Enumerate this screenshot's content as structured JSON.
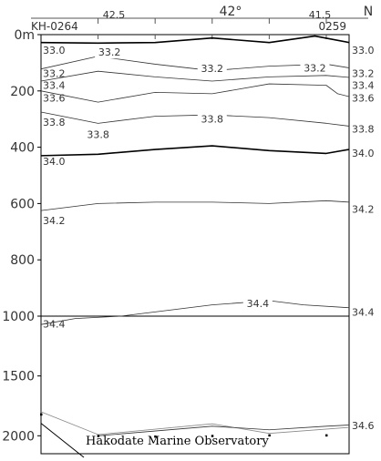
{
  "chart_data": {
    "type": "contour",
    "title": "",
    "top_labels": [
      "42.5",
      "42°",
      "41.5",
      "N"
    ],
    "stations": {
      "left": "KH-0264",
      "right": "0259"
    },
    "x_ticks": [
      42.5,
      42.25,
      42.0,
      41.75,
      41.5
    ],
    "xlim": [
      42.75,
      41.4
    ],
    "yaxis": {
      "upper": {
        "range": [
          0,
          1000
        ],
        "ticks": [
          0,
          200,
          400,
          600,
          800,
          1000
        ],
        "tick_labels": [
          "0m",
          "200",
          "400",
          "600",
          "800",
          "1000"
        ]
      },
      "lower": {
        "range": [
          1000,
          2150
        ],
        "ticks": [
          1500,
          2000
        ],
        "tick_labels": [
          "1500",
          "2000"
        ]
      }
    },
    "sample_marks": [
      [
        42.75,
        1820
      ],
      [
        42.5,
        2000
      ],
      [
        42.25,
        2005
      ],
      [
        42.0,
        2000
      ],
      [
        41.75,
        1995
      ],
      [
        41.5,
        1995
      ]
    ],
    "bottom_depth": [
      [
        42.75,
        1800
      ],
      [
        42.5,
        1990
      ],
      [
        42.0,
        1900
      ],
      [
        41.75,
        1980
      ],
      [
        41.4,
        1930
      ]
    ],
    "isolines": [
      {
        "value": "33.0",
        "bold": true,
        "points": [
          [
            42.75,
            28
          ],
          [
            42.5,
            30
          ],
          [
            42.25,
            28
          ],
          [
            42.0,
            12
          ],
          [
            41.75,
            28
          ],
          [
            41.55,
            5
          ],
          [
            41.4,
            28
          ]
        ],
        "labels": [
          [
            42.85,
            55,
            "left"
          ],
          [
            41.3,
            55,
            "right"
          ]
        ]
      },
      {
        "value": "33.2",
        "bold": false,
        "points": [
          [
            42.75,
            122
          ],
          [
            42.5,
            77
          ],
          [
            42.25,
            105
          ],
          [
            42.0,
            128
          ],
          [
            41.75,
            112
          ],
          [
            41.5,
            105
          ],
          [
            41.4,
            118
          ]
        ],
        "labels": [
          [
            42.85,
            138,
            "left"
          ],
          [
            42.45,
            62,
            "mid"
          ],
          [
            42.0,
            120,
            "mid"
          ],
          [
            41.55,
            118,
            "mid"
          ],
          [
            41.3,
            138,
            "right"
          ]
        ]
      },
      {
        "value": "33.4",
        "bold": false,
        "points": [
          [
            42.75,
            165
          ],
          [
            42.5,
            130
          ],
          [
            42.25,
            150
          ],
          [
            42.0,
            165
          ],
          [
            41.75,
            150
          ],
          [
            41.5,
            145
          ],
          [
            41.4,
            152
          ]
        ],
        "labels": [
          [
            42.85,
            180,
            "left"
          ],
          [
            41.3,
            180,
            "right"
          ]
        ]
      },
      {
        "value": "33.6",
        "bold": false,
        "points": [
          [
            42.75,
            200
          ],
          [
            42.5,
            240
          ],
          [
            42.25,
            205
          ],
          [
            42.0,
            210
          ],
          [
            41.75,
            175
          ],
          [
            41.5,
            180
          ],
          [
            41.45,
            210
          ],
          [
            41.4,
            220
          ]
        ],
        "labels": [
          [
            42.85,
            225,
            "left"
          ],
          [
            41.3,
            225,
            "right"
          ]
        ]
      },
      {
        "value": "33.8",
        "bold": false,
        "points": [
          [
            42.75,
            275
          ],
          [
            42.5,
            315
          ],
          [
            42.25,
            290
          ],
          [
            42.0,
            285
          ],
          [
            41.75,
            295
          ],
          [
            41.5,
            315
          ],
          [
            41.4,
            325
          ]
        ],
        "labels": [
          [
            42.85,
            310,
            "left"
          ],
          [
            42.5,
            355,
            "mid"
          ],
          [
            42.0,
            300,
            "mid"
          ],
          [
            41.3,
            335,
            "right"
          ]
        ]
      },
      {
        "value": "34.0",
        "bold": true,
        "points": [
          [
            42.75,
            430
          ],
          [
            42.5,
            425
          ],
          [
            42.25,
            408
          ],
          [
            42.0,
            395
          ],
          [
            41.75,
            412
          ],
          [
            41.5,
            422
          ],
          [
            41.4,
            408
          ]
        ],
        "labels": [
          [
            42.85,
            450,
            "left"
          ],
          [
            41.3,
            420,
            "right"
          ]
        ]
      },
      {
        "value": "34.2",
        "bold": false,
        "points": [
          [
            42.75,
            625
          ],
          [
            42.5,
            600
          ],
          [
            42.25,
            595
          ],
          [
            42.0,
            595
          ],
          [
            41.75,
            600
          ],
          [
            41.5,
            590
          ],
          [
            41.4,
            595
          ]
        ],
        "labels": [
          [
            42.85,
            660,
            "left"
          ],
          [
            41.3,
            620,
            "right"
          ]
        ]
      },
      {
        "value": "34.4",
        "bold": false,
        "points": [
          [
            42.75,
            1070
          ],
          [
            42.6,
            1020
          ],
          [
            42.4,
            1000
          ],
          [
            42.0,
            960
          ],
          [
            41.75,
            945
          ],
          [
            41.6,
            960
          ],
          [
            41.4,
            970
          ]
        ],
        "labels": [
          [
            42.85,
            1065,
            "left"
          ],
          [
            41.8,
            955,
            "mid"
          ],
          [
            41.3,
            985,
            "right"
          ]
        ]
      },
      {
        "value": "34.6",
        "bold": false,
        "points": [
          [
            42.5,
            2000
          ],
          [
            42.25,
            1960
          ],
          [
            42.0,
            1920
          ],
          [
            41.75,
            1950
          ],
          [
            41.5,
            1920
          ],
          [
            41.4,
            1910
          ]
        ],
        "labels": [
          [
            41.3,
            1915,
            "right"
          ]
        ]
      }
    ]
  },
  "attribution": "Hakodate Marine Observatory"
}
